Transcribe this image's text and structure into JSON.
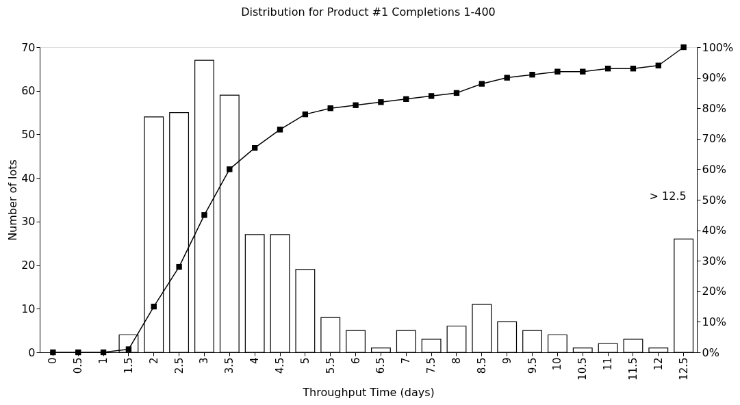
{
  "chart_data": {
    "type": "bar",
    "title": "Distribution for Product #1 Completions 1-400",
    "xlabel": "Throughput Time (days)",
    "ylabel": "Number of lots",
    "categories": [
      "0",
      "0.5",
      "1",
      "1.5",
      "2",
      "2.5",
      "3",
      "3.5",
      "4",
      "4.5",
      "5",
      "5.5",
      "6",
      "6.5",
      "7",
      "7.5",
      "8",
      "8.5",
      "9",
      "9.5",
      "10",
      "10.5",
      "11",
      "11.5",
      "12",
      "12.5"
    ],
    "series": [
      {
        "color": "#ffffff",
        "values": [
          0,
          0,
          0,
          4,
          54,
          55,
          67,
          59,
          27,
          27,
          19,
          8,
          5,
          1,
          5,
          3,
          6,
          11,
          7,
          5,
          4,
          1,
          2,
          3,
          1,
          26
        ]
      },
      {
        "type": "line",
        "axis": "y2",
        "color": "#000000",
        "marker": "square",
        "values": [
          0,
          0,
          0,
          1,
          15,
          28,
          45,
          60,
          67,
          73,
          78,
          80,
          81,
          82,
          83,
          84,
          85,
          88,
          90,
          91,
          92,
          92,
          93,
          93,
          94,
          100
        ]
      }
    ],
    "ylim": [
      0,
      70
    ],
    "yticks": [
      0,
      10,
      20,
      30,
      40,
      50,
      60,
      70
    ],
    "y2lim": [
      0,
      100
    ],
    "y2ticks": [
      {
        "value": 0,
        "label": "0%"
      },
      {
        "value": 10,
        "label": "10%"
      },
      {
        "value": 20,
        "label": "20%"
      },
      {
        "value": 30,
        "label": "30%"
      },
      {
        "value": 40,
        "label": "40%"
      },
      {
        "value": 50,
        "label": "50%"
      },
      {
        "value": 60,
        "label": "60%"
      },
      {
        "value": 70,
        "label": "70%"
      },
      {
        "value": 80,
        "label": "80%"
      },
      {
        "value": 90,
        "label": "90%"
      },
      {
        "value": 100,
        "label": "100%"
      }
    ],
    "annotations": [
      "> 12.5"
    ],
    "grid": false
  }
}
